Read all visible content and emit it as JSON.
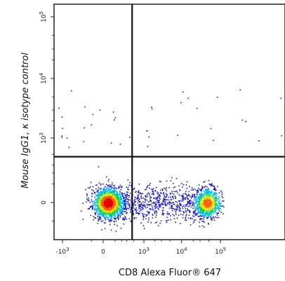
{
  "chart_data": {
    "type": "scatter",
    "title": "",
    "xlabel": "CD8 Alexa Fluor® 647",
    "ylabel": "Mouse IgG1, κ isotype control",
    "x_scale": "biexponential",
    "y_scale": "biexponential",
    "x_ticks": [
      {
        "value": -1000,
        "base": "-10",
        "exp": "3"
      },
      {
        "value": 0,
        "base": "0",
        "exp": ""
      },
      {
        "value": 1000,
        "base": "10",
        "exp": "3"
      },
      {
        "value": 10000,
        "base": "10",
        "exp": "4"
      },
      {
        "value": 100000,
        "base": "10",
        "exp": "5"
      }
    ],
    "y_ticks": [
      {
        "value": 0,
        "base": "0",
        "exp": ""
      },
      {
        "value": 1000,
        "base": "10",
        "exp": "3"
      },
      {
        "value": 10000,
        "base": "10",
        "exp": "4"
      },
      {
        "value": 100000,
        "base": "10",
        "exp": "5"
      }
    ],
    "quadrant_gate": {
      "x": 450,
      "y": 450
    },
    "populations": [
      {
        "center_x": 30,
        "center_y": 0,
        "events": 1500
      },
      {
        "center_x": 45000,
        "center_y": 0,
        "events": 700
      }
    ],
    "colors": {
      "density": [
        "#1a1ac8",
        "#00b4ff",
        "#00d060",
        "#e8e000",
        "#ff6000",
        "#e00000"
      ],
      "gate": "#111111"
    },
    "grid": false,
    "legend": "none"
  }
}
